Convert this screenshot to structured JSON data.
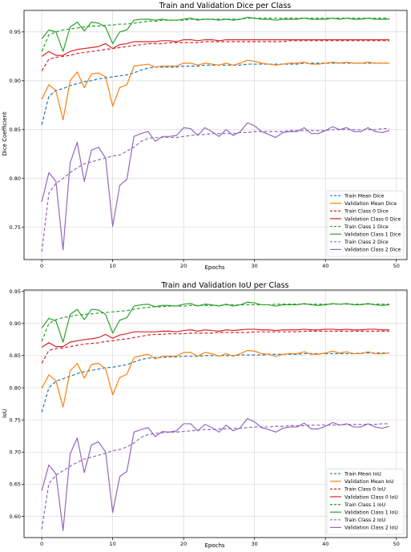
{
  "chart_data": [
    {
      "type": "line",
      "title": "Train and Validation Dice per Class",
      "xlabel": "Epochs",
      "ylabel": "Dice Coefficient",
      "xlim": [
        -2.5,
        51.5
      ],
      "ylim": [
        0.717,
        0.972
      ],
      "xticks": [
        0,
        10,
        20,
        30,
        40,
        50
      ],
      "yticks": [
        0.75,
        0.8,
        0.85,
        0.9,
        0.95
      ],
      "ytick_labels": [
        "0.75",
        "0.80",
        "0.85",
        "0.90",
        "0.95"
      ],
      "grid": true,
      "legend_position": "lower-right",
      "series": [
        {
          "name": "Train Mean Dice",
          "color": "#1f77b4",
          "dash": true,
          "values": [
            0.855,
            0.884,
            0.89,
            0.892,
            0.895,
            0.897,
            0.899,
            0.9,
            0.902,
            0.903,
            0.904,
            0.905,
            0.906,
            0.908,
            0.911,
            0.913,
            0.914,
            0.914,
            0.914,
            0.914,
            0.915,
            0.915,
            0.915,
            0.916,
            0.916,
            0.916,
            0.916,
            0.916,
            0.916,
            0.917,
            0.917,
            0.917,
            0.917,
            0.917,
            0.917,
            0.917,
            0.917,
            0.918,
            0.918,
            0.918,
            0.918,
            0.918,
            0.918,
            0.918,
            0.918,
            0.918,
            0.918,
            0.918,
            0.918,
            0.918
          ]
        },
        {
          "name": "Validation Mean Dice",
          "color": "#ff7f0e",
          "dash": false,
          "values": [
            0.881,
            0.896,
            0.89,
            0.86,
            0.9,
            0.909,
            0.893,
            0.907,
            0.908,
            0.904,
            0.874,
            0.893,
            0.896,
            0.915,
            0.916,
            0.917,
            0.914,
            0.915,
            0.915,
            0.915,
            0.918,
            0.918,
            0.916,
            0.918,
            0.917,
            0.916,
            0.918,
            0.916,
            0.918,
            0.921,
            0.92,
            0.918,
            0.917,
            0.916,
            0.917,
            0.918,
            0.918,
            0.919,
            0.917,
            0.917,
            0.918,
            0.919,
            0.918,
            0.919,
            0.918,
            0.918,
            0.919,
            0.918,
            0.918,
            0.918
          ]
        },
        {
          "name": "Train Class 0 Dice",
          "color": "#d62728",
          "dash": true,
          "values": [
            0.91,
            0.922,
            0.924,
            0.925,
            0.926,
            0.928,
            0.929,
            0.93,
            0.931,
            0.932,
            0.933,
            0.934,
            0.935,
            0.936,
            0.937,
            0.938,
            0.938,
            0.938,
            0.939,
            0.939,
            0.939,
            0.939,
            0.939,
            0.94,
            0.94,
            0.94,
            0.94,
            0.94,
            0.94,
            0.94,
            0.94,
            0.94,
            0.94,
            0.94,
            0.94,
            0.941,
            0.941,
            0.941,
            0.941,
            0.941,
            0.941,
            0.941,
            0.941,
            0.941,
            0.941,
            0.941,
            0.941,
            0.941,
            0.941,
            0.941
          ]
        },
        {
          "name": "Validation Class 0 Dice",
          "color": "#d62728",
          "dash": false,
          "values": [
            0.925,
            0.93,
            0.926,
            0.926,
            0.93,
            0.932,
            0.933,
            0.934,
            0.935,
            0.938,
            0.933,
            0.937,
            0.938,
            0.94,
            0.94,
            0.94,
            0.94,
            0.941,
            0.941,
            0.94,
            0.942,
            0.942,
            0.941,
            0.942,
            0.942,
            0.941,
            0.942,
            0.942,
            0.942,
            0.942,
            0.942,
            0.942,
            0.942,
            0.942,
            0.942,
            0.942,
            0.942,
            0.942,
            0.942,
            0.942,
            0.942,
            0.942,
            0.942,
            0.942,
            0.942,
            0.942,
            0.942,
            0.942,
            0.942,
            0.942
          ]
        },
        {
          "name": "Train Class 1 Dice",
          "color": "#2ca02c",
          "dash": true,
          "values": [
            0.93,
            0.947,
            0.95,
            0.952,
            0.953,
            0.954,
            0.955,
            0.956,
            0.956,
            0.957,
            0.957,
            0.958,
            0.958,
            0.959,
            0.96,
            0.961,
            0.961,
            0.962,
            0.962,
            0.962,
            0.962,
            0.963,
            0.963,
            0.963,
            0.963,
            0.963,
            0.963,
            0.963,
            0.963,
            0.964,
            0.964,
            0.964,
            0.964,
            0.964,
            0.964,
            0.964,
            0.964,
            0.964,
            0.964,
            0.964,
            0.964,
            0.964,
            0.964,
            0.964,
            0.964,
            0.964,
            0.964,
            0.964,
            0.964,
            0.964
          ]
        },
        {
          "name": "Validation Class 1 Dice",
          "color": "#2ca02c",
          "dash": false,
          "values": [
            0.943,
            0.952,
            0.95,
            0.93,
            0.955,
            0.96,
            0.951,
            0.96,
            0.959,
            0.955,
            0.938,
            0.95,
            0.952,
            0.962,
            0.963,
            0.963,
            0.962,
            0.963,
            0.962,
            0.962,
            0.963,
            0.964,
            0.962,
            0.963,
            0.963,
            0.962,
            0.963,
            0.962,
            0.963,
            0.965,
            0.964,
            0.963,
            0.963,
            0.962,
            0.963,
            0.963,
            0.963,
            0.964,
            0.963,
            0.963,
            0.963,
            0.964,
            0.963,
            0.964,
            0.963,
            0.963,
            0.964,
            0.963,
            0.963,
            0.963
          ]
        },
        {
          "name": "Train Class 2 Dice",
          "color": "#9467bd",
          "dash": true,
          "values": [
            0.725,
            0.785,
            0.795,
            0.8,
            0.806,
            0.811,
            0.815,
            0.817,
            0.819,
            0.821,
            0.823,
            0.824,
            0.828,
            0.832,
            0.838,
            0.841,
            0.842,
            0.842,
            0.842,
            0.842,
            0.843,
            0.844,
            0.845,
            0.845,
            0.846,
            0.846,
            0.846,
            0.846,
            0.847,
            0.847,
            0.848,
            0.848,
            0.848,
            0.848,
            0.848,
            0.849,
            0.849,
            0.849,
            0.849,
            0.849,
            0.849,
            0.85,
            0.85,
            0.85,
            0.85,
            0.85,
            0.85,
            0.85,
            0.851,
            0.851
          ]
        },
        {
          "name": "Validation Class 2 Dice",
          "color": "#9467bd",
          "dash": false,
          "values": [
            0.776,
            0.806,
            0.797,
            0.727,
            0.816,
            0.837,
            0.797,
            0.829,
            0.832,
            0.821,
            0.751,
            0.793,
            0.799,
            0.843,
            0.846,
            0.848,
            0.838,
            0.843,
            0.843,
            0.844,
            0.852,
            0.851,
            0.844,
            0.852,
            0.848,
            0.843,
            0.85,
            0.844,
            0.848,
            0.857,
            0.854,
            0.848,
            0.845,
            0.842,
            0.847,
            0.848,
            0.848,
            0.852,
            0.846,
            0.846,
            0.849,
            0.853,
            0.85,
            0.852,
            0.848,
            0.848,
            0.852,
            0.848,
            0.847,
            0.849
          ]
        }
      ]
    },
    {
      "type": "line",
      "title": "Train and Validation IoU per Class",
      "xlabel": "Epochs",
      "ylabel": "IoU",
      "xlim": [
        -2.5,
        51.5
      ],
      "ylim": [
        0.567,
        0.952
      ],
      "xticks": [
        0,
        10,
        20,
        30,
        40,
        50
      ],
      "yticks": [
        0.6,
        0.65,
        0.7,
        0.75,
        0.8,
        0.85,
        0.9,
        0.95
      ],
      "ytick_labels": [
        "0.60",
        "0.65",
        "0.70",
        "0.75",
        "0.80",
        "0.85",
        "0.90",
        "0.95"
      ],
      "grid": true,
      "legend_position": "lower-right",
      "series": [
        {
          "name": "Train Mean IoU",
          "color": "#1f77b4",
          "dash": true,
          "values": [
            0.762,
            0.8,
            0.81,
            0.814,
            0.818,
            0.822,
            0.825,
            0.827,
            0.829,
            0.831,
            0.832,
            0.834,
            0.836,
            0.84,
            0.844,
            0.846,
            0.847,
            0.847,
            0.848,
            0.848,
            0.849,
            0.849,
            0.849,
            0.85,
            0.85,
            0.85,
            0.85,
            0.85,
            0.851,
            0.851,
            0.851,
            0.851,
            0.852,
            0.852,
            0.852,
            0.852,
            0.852,
            0.853,
            0.853,
            0.853,
            0.853,
            0.853,
            0.853,
            0.853,
            0.853,
            0.854,
            0.854,
            0.854,
            0.854,
            0.854
          ]
        },
        {
          "name": "Validation Mean IoU",
          "color": "#ff7f0e",
          "dash": false,
          "values": [
            0.799,
            0.82,
            0.811,
            0.77,
            0.826,
            0.838,
            0.815,
            0.836,
            0.838,
            0.83,
            0.789,
            0.816,
            0.821,
            0.847,
            0.85,
            0.852,
            0.845,
            0.849,
            0.849,
            0.849,
            0.855,
            0.855,
            0.849,
            0.855,
            0.853,
            0.849,
            0.853,
            0.849,
            0.853,
            0.858,
            0.857,
            0.853,
            0.852,
            0.849,
            0.852,
            0.853,
            0.853,
            0.856,
            0.852,
            0.852,
            0.854,
            0.857,
            0.854,
            0.856,
            0.853,
            0.853,
            0.856,
            0.853,
            0.853,
            0.854
          ]
        },
        {
          "name": "Train Class 0 IoU",
          "color": "#d62728",
          "dash": true,
          "values": [
            0.838,
            0.858,
            0.861,
            0.862,
            0.864,
            0.866,
            0.868,
            0.869,
            0.87,
            0.872,
            0.873,
            0.875,
            0.876,
            0.878,
            0.88,
            0.882,
            0.883,
            0.883,
            0.884,
            0.884,
            0.884,
            0.885,
            0.885,
            0.885,
            0.885,
            0.886,
            0.886,
            0.886,
            0.886,
            0.886,
            0.887,
            0.887,
            0.887,
            0.887,
            0.887,
            0.887,
            0.887,
            0.888,
            0.888,
            0.888,
            0.888,
            0.888,
            0.888,
            0.888,
            0.888,
            0.888,
            0.888,
            0.888,
            0.888,
            0.888
          ]
        },
        {
          "name": "Validation Class 0 IoU",
          "color": "#d62728",
          "dash": false,
          "values": [
            0.863,
            0.87,
            0.864,
            0.864,
            0.871,
            0.873,
            0.875,
            0.876,
            0.878,
            0.883,
            0.877,
            0.882,
            0.884,
            0.887,
            0.887,
            0.887,
            0.887,
            0.888,
            0.888,
            0.887,
            0.889,
            0.89,
            0.888,
            0.89,
            0.889,
            0.888,
            0.89,
            0.889,
            0.89,
            0.891,
            0.891,
            0.89,
            0.89,
            0.889,
            0.89,
            0.89,
            0.89,
            0.891,
            0.89,
            0.89,
            0.891,
            0.891,
            0.89,
            0.891,
            0.89,
            0.89,
            0.891,
            0.891,
            0.89,
            0.89
          ]
        },
        {
          "name": "Train Class 1 IoU",
          "color": "#2ca02c",
          "dash": true,
          "values": [
            0.872,
            0.9,
            0.906,
            0.909,
            0.911,
            0.913,
            0.914,
            0.915,
            0.916,
            0.917,
            0.918,
            0.919,
            0.92,
            0.922,
            0.924,
            0.925,
            0.926,
            0.926,
            0.927,
            0.927,
            0.927,
            0.928,
            0.928,
            0.928,
            0.928,
            0.928,
            0.929,
            0.929,
            0.929,
            0.929,
            0.929,
            0.929,
            0.929,
            0.93,
            0.93,
            0.93,
            0.93,
            0.93,
            0.93,
            0.93,
            0.93,
            0.93,
            0.93,
            0.93,
            0.93,
            0.93,
            0.93,
            0.93,
            0.93,
            0.93
          ]
        },
        {
          "name": "Validation Class 1 IoU",
          "color": "#2ca02c",
          "dash": false,
          "values": [
            0.893,
            0.908,
            0.904,
            0.871,
            0.914,
            0.922,
            0.906,
            0.922,
            0.921,
            0.914,
            0.885,
            0.905,
            0.909,
            0.927,
            0.929,
            0.93,
            0.926,
            0.928,
            0.928,
            0.927,
            0.93,
            0.931,
            0.927,
            0.93,
            0.929,
            0.927,
            0.93,
            0.927,
            0.929,
            0.933,
            0.932,
            0.929,
            0.929,
            0.927,
            0.929,
            0.929,
            0.929,
            0.931,
            0.929,
            0.928,
            0.929,
            0.931,
            0.93,
            0.931,
            0.929,
            0.929,
            0.931,
            0.929,
            0.928,
            0.929
          ]
        },
        {
          "name": "Train Class 2 IoU",
          "color": "#9467bd",
          "dash": true,
          "values": [
            0.58,
            0.651,
            0.664,
            0.671,
            0.678,
            0.684,
            0.689,
            0.692,
            0.695,
            0.698,
            0.702,
            0.704,
            0.708,
            0.714,
            0.723,
            0.727,
            0.729,
            0.73,
            0.731,
            0.731,
            0.732,
            0.733,
            0.734,
            0.735,
            0.735,
            0.736,
            0.736,
            0.737,
            0.737,
            0.738,
            0.739,
            0.739,
            0.739,
            0.74,
            0.74,
            0.741,
            0.741,
            0.741,
            0.742,
            0.742,
            0.742,
            0.742,
            0.742,
            0.743,
            0.743,
            0.743,
            0.743,
            0.743,
            0.744,
            0.744
          ]
        },
        {
          "name": "Validation Class 2 IoU",
          "color": "#9467bd",
          "dash": false,
          "values": [
            0.64,
            0.68,
            0.666,
            0.578,
            0.697,
            0.722,
            0.668,
            0.711,
            0.716,
            0.7,
            0.606,
            0.662,
            0.67,
            0.731,
            0.735,
            0.738,
            0.724,
            0.732,
            0.731,
            0.733,
            0.744,
            0.744,
            0.733,
            0.743,
            0.738,
            0.731,
            0.742,
            0.733,
            0.738,
            0.752,
            0.747,
            0.738,
            0.735,
            0.731,
            0.737,
            0.739,
            0.739,
            0.745,
            0.736,
            0.736,
            0.74,
            0.746,
            0.742,
            0.744,
            0.739,
            0.739,
            0.744,
            0.739,
            0.737,
            0.74
          ]
        }
      ]
    }
  ]
}
